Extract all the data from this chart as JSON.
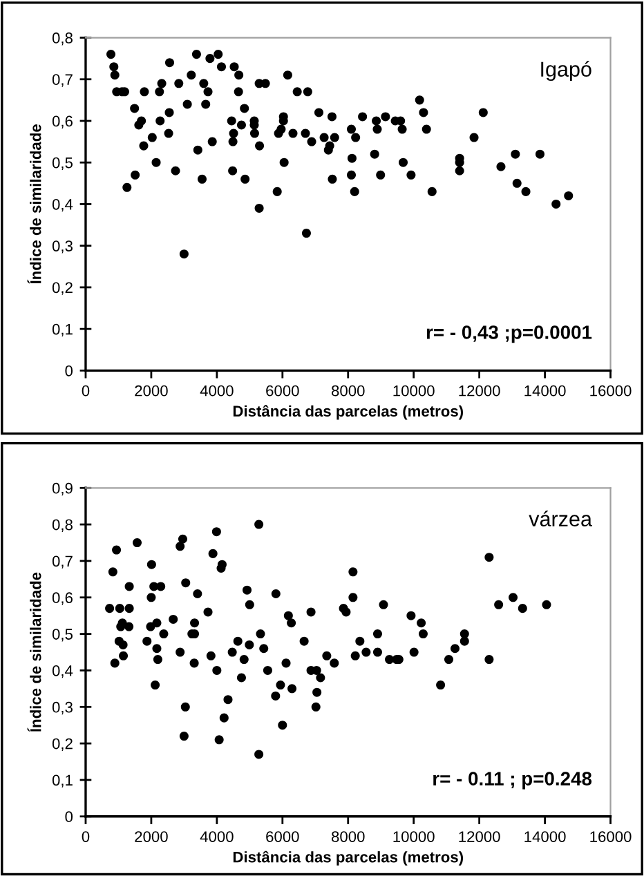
{
  "chart_data": [
    {
      "type": "scatter",
      "xlabel": "Distância das parcelas (metros)",
      "ylabel": "Índice de similaridade",
      "annotations": [
        "Igapó",
        "r= - 0,43 ;p=0.0001"
      ],
      "xlim": [
        0,
        16000
      ],
      "xticks": [
        0,
        2000,
        4000,
        6000,
        8000,
        10000,
        12000,
        14000,
        16000
      ],
      "ylim": [
        0,
        0.8
      ],
      "yticks": [
        0,
        {
          "value": 0.1,
          "label": "0,1"
        },
        {
          "value": 0.2,
          "label": "0,2"
        },
        {
          "value": 0.3,
          "label": "0,3"
        },
        {
          "value": 0.4,
          "label": "0,4"
        },
        {
          "value": 0.5,
          "label": "0,5"
        },
        {
          "value": 0.6,
          "label": "0,6"
        },
        {
          "value": 0.7,
          "label": "0,7"
        },
        {
          "value": 0.8,
          "label": "0,8"
        }
      ],
      "grid": false,
      "legend": false,
      "marker": "circle",
      "series": [
        {
          "color": "#000000",
          "x": [
            770,
            860,
            890,
            945,
            1110,
            1190,
            1260,
            1510,
            1490,
            1620,
            1700,
            1770,
            1790,
            2030,
            2150,
            2250,
            2320,
            2270,
            2530,
            2550,
            2560,
            2740,
            2840,
            3000,
            3100,
            3220,
            3380,
            3420,
            3550,
            3600,
            3660,
            3730,
            3790,
            3860,
            4040,
            4140,
            4450,
            4490,
            4510,
            4480,
            4530,
            4670,
            4660,
            4750,
            4840,
            4860,
            5140,
            5140,
            5150,
            5300,
            5290,
            5290,
            5480,
            5840,
            5880,
            5960,
            6030,
            6030,
            6050,
            6160,
            6320,
            6450,
            6700,
            6730,
            6770,
            6890,
            7110,
            7270,
            7400,
            7440,
            7510,
            7520,
            7590,
            8100,
            8230,
            8120,
            8100,
            8200,
            8440,
            8810,
            8860,
            8890,
            8990,
            9140,
            9440,
            9600,
            9650,
            9680,
            9920,
            10180,
            10300,
            10390,
            10560,
            11400,
            11400,
            11400,
            11840,
            12120,
            12660,
            13100,
            13150,
            13420,
            13850,
            14340,
            14720
          ],
          "values": [
            0.76,
            0.73,
            0.71,
            0.67,
            0.67,
            0.67,
            0.44,
            0.47,
            0.63,
            0.59,
            0.6,
            0.54,
            0.67,
            0.56,
            0.5,
            0.67,
            0.69,
            0.6,
            0.57,
            0.62,
            0.74,
            0.48,
            0.69,
            0.28,
            0.64,
            0.71,
            0.76,
            0.53,
            0.46,
            0.69,
            0.64,
            0.67,
            0.75,
            0.55,
            0.76,
            0.73,
            0.6,
            0.55,
            0.57,
            0.48,
            0.73,
            0.71,
            0.67,
            0.59,
            0.63,
            0.46,
            0.6,
            0.59,
            0.57,
            0.54,
            0.39,
            0.69,
            0.69,
            0.43,
            0.57,
            0.58,
            0.6,
            0.61,
            0.5,
            0.71,
            0.57,
            0.67,
            0.57,
            0.33,
            0.67,
            0.55,
            0.62,
            0.56,
            0.53,
            0.54,
            0.61,
            0.46,
            0.56,
            0.58,
            0.56,
            0.51,
            0.47,
            0.43,
            0.61,
            0.52,
            0.6,
            0.58,
            0.47,
            0.61,
            0.6,
            0.6,
            0.58,
            0.5,
            0.47,
            0.65,
            0.62,
            0.58,
            0.43,
            0.51,
            0.5,
            0.48,
            0.56,
            0.62,
            0.49,
            0.52,
            0.45,
            0.43,
            0.52,
            0.4,
            0.42
          ]
        }
      ]
    },
    {
      "type": "scatter",
      "xlabel": "Distância das parcelas (metros)",
      "ylabel": "Índice de similaridade",
      "annotations": [
        "várzea",
        "r= - 0.11 ; p=0.248"
      ],
      "xlim": [
        0,
        16000
      ],
      "xticks": [
        0,
        2000,
        4000,
        6000,
        8000,
        10000,
        12000,
        14000,
        16000
      ],
      "ylim": [
        0,
        0.9
      ],
      "yticks": [
        0,
        {
          "value": 0.1,
          "label": "0,1"
        },
        {
          "value": 0.2,
          "label": "0,2"
        },
        {
          "value": 0.3,
          "label": "0,3"
        },
        {
          "value": 0.4,
          "label": "0,4"
        },
        {
          "value": 0.5,
          "label": "0,5"
        },
        {
          "value": 0.6,
          "label": "0,6"
        },
        {
          "value": 0.7,
          "label": "0,7"
        },
        {
          "value": 0.8,
          "label": "0,8"
        },
        {
          "value": 0.9,
          "label": "0,9"
        }
      ],
      "grid": false,
      "legend": false,
      "marker": "circle",
      "series": [
        {
          "color": "#000000",
          "x": [
            730,
            830,
            890,
            940,
            1020,
            1040,
            1070,
            1120,
            1140,
            1150,
            1330,
            1330,
            1320,
            1570,
            1870,
            2010,
            2000,
            1980,
            2080,
            2120,
            2170,
            2170,
            2200,
            2290,
            2380,
            2670,
            2880,
            2880,
            2960,
            3000,
            3050,
            3040,
            3240,
            3320,
            3320,
            3310,
            3410,
            3730,
            3820,
            3880,
            3990,
            4000,
            4070,
            4130,
            4160,
            4220,
            4340,
            4470,
            4640,
            4750,
            4830,
            4920,
            4990,
            5000,
            5280,
            5280,
            5330,
            5430,
            5550,
            5790,
            5800,
            5940,
            6000,
            6110,
            6180,
            6270,
            6290,
            6660,
            6870,
            6870,
            7040,
            7050,
            7020,
            7160,
            7350,
            7580,
            7860,
            7940,
            8150,
            8150,
            8220,
            8360,
            8550,
            8900,
            8900,
            9080,
            9260,
            9480,
            9550,
            9920,
            10010,
            10230,
            10290,
            10820,
            11070,
            11260,
            11550,
            11550,
            12300,
            12300,
            12590,
            13030,
            13320,
            14050
          ],
          "values": [
            0.57,
            0.67,
            0.42,
            0.73,
            0.48,
            0.57,
            0.52,
            0.53,
            0.47,
            0.44,
            0.63,
            0.57,
            0.52,
            0.75,
            0.48,
            0.69,
            0.6,
            0.52,
            0.63,
            0.36,
            0.53,
            0.46,
            0.43,
            0.63,
            0.5,
            0.54,
            0.45,
            0.74,
            0.76,
            0.22,
            0.64,
            0.3,
            0.5,
            0.53,
            0.5,
            0.42,
            0.61,
            0.56,
            0.44,
            0.72,
            0.78,
            0.4,
            0.21,
            0.68,
            0.69,
            0.27,
            0.32,
            0.45,
            0.48,
            0.38,
            0.43,
            0.62,
            0.47,
            0.58,
            0.8,
            0.17,
            0.5,
            0.46,
            0.4,
            0.33,
            0.61,
            0.36,
            0.25,
            0.42,
            0.55,
            0.53,
            0.35,
            0.48,
            0.56,
            0.4,
            0.4,
            0.34,
            0.3,
            0.38,
            0.44,
            0.42,
            0.57,
            0.56,
            0.67,
            0.6,
            0.44,
            0.48,
            0.45,
            0.5,
            0.45,
            0.58,
            0.43,
            0.43,
            0.43,
            0.55,
            0.45,
            0.53,
            0.5,
            0.36,
            0.43,
            0.46,
            0.48,
            0.5,
            0.71,
            0.43,
            0.58,
            0.6,
            0.57,
            0.58
          ]
        }
      ]
    }
  ]
}
